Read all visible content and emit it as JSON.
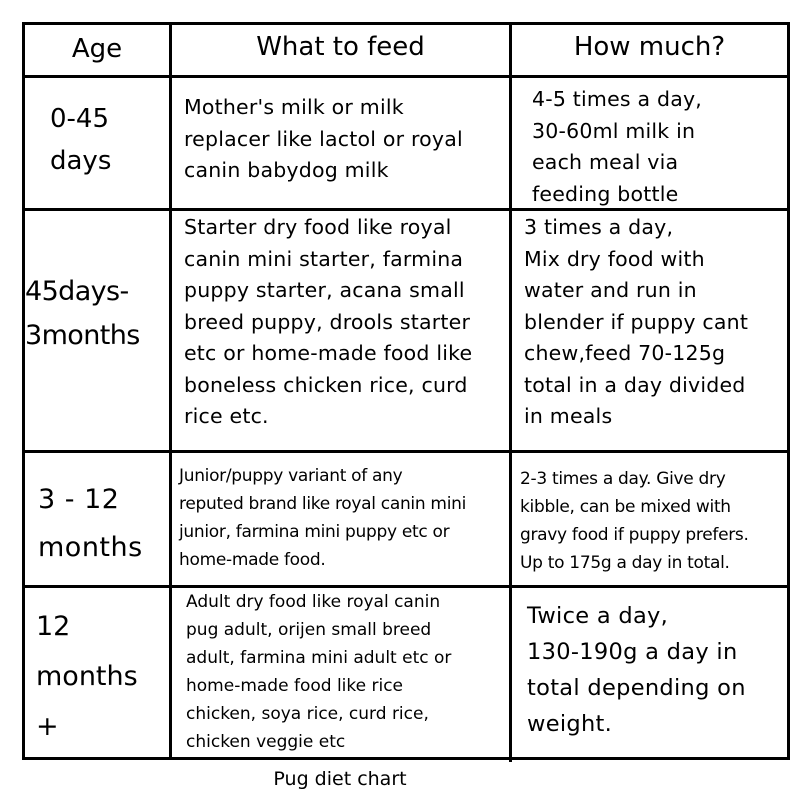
{
  "headers": {
    "age": "Age",
    "what": "What to feed",
    "how": "How much?"
  },
  "rows": [
    {
      "age": "0-45\ndays",
      "what": "Mother's milk or milk\nreplacer like lactol or royal\ncanin babydog milk",
      "how": "4-5 times a day,\n30-60ml milk in\neach meal via\nfeeding bottle"
    },
    {
      "age": "45days-\n3months",
      "what": "Starter dry food like royal\ncanin mini starter, farmina\npuppy starter, acana small\nbreed puppy, drools starter\netc or home-made food like\nboneless chicken rice, curd\nrice etc.",
      "how": "3 times a day,\nMix dry food with\nwater and run in\nblender if puppy cant\nchew,feed 70-125g\ntotal in a day divided\nin meals"
    },
    {
      "age": "3 - 12\nmonths",
      "what": "Junior/puppy variant of any\nreputed brand like royal canin mini\njunior, farmina mini puppy etc or\nhome-made food.",
      "how": "2-3 times a day. Give dry\nkibble, can be mixed with\ngravy food if puppy prefers.\nUp to 175g a day in total."
    },
    {
      "age": "12\nmonths\n+",
      "what": "Adult dry food like royal canin\npug adult, orijen small breed\nadult, farmina mini adult etc or\nhome-made food like rice\nchicken, soya rice, curd rice,\nchicken veggie etc",
      "how": "Twice a day,\n130-190g a day in\ntotal depending on\nweight."
    }
  ],
  "caption": "Pug diet chart"
}
